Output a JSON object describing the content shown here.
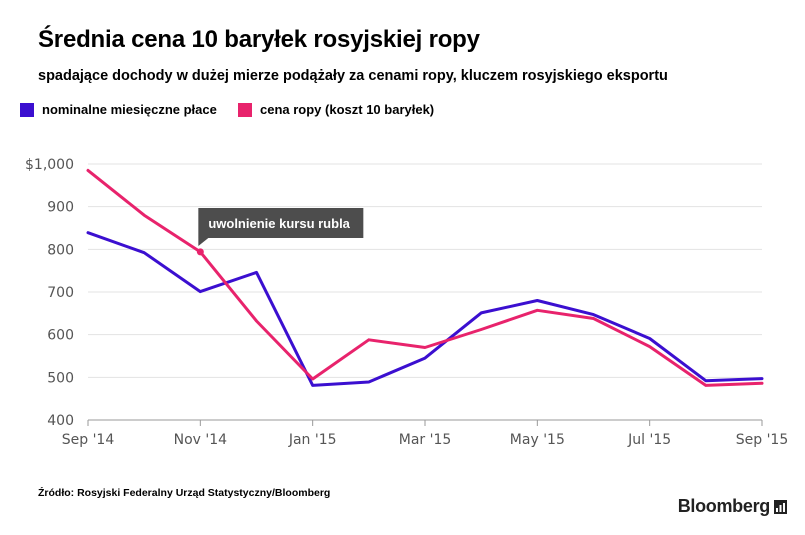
{
  "header": {
    "title": "Średnia cena 10 baryłek rosyjskiej ropy",
    "subtitle": "spadające dochody w dużej mierze podążały za cenami ropy, kluczem rosyjskiego eksportu"
  },
  "footer": {
    "source": "Źródło: Rosyjski Federalny Urząd Statystyczny/Bloomberg",
    "logo": "Bloomberg"
  },
  "chart_data": {
    "type": "line",
    "x": [
      "Sep '14",
      "Oct '14",
      "Nov '14",
      "Dec '14",
      "Jan '15",
      "Feb '15",
      "Mar '15",
      "Apr '15",
      "May '15",
      "Jun '15",
      "Jul '15",
      "Aug '15",
      "Sep '15"
    ],
    "x_tick_labels": [
      "Sep '14",
      "Nov '14",
      "Jan '15",
      "Mar '15",
      "May '15",
      "Jul '15",
      "Sep '15"
    ],
    "y_tick_labels": [
      "$1,000",
      "900",
      "800",
      "700",
      "600",
      "500",
      "400"
    ],
    "ylim": [
      400,
      1000
    ],
    "grid": true,
    "legend_position": "top-left",
    "series": [
      {
        "name": "nominalne miesięczne płace",
        "color": "#3b0fd0",
        "values": [
          839,
          792,
          701,
          746,
          481,
          489,
          545,
          651,
          680,
          647,
          591,
          492,
          497
        ]
      },
      {
        "name": "cena ropy (koszt 10 baryłek)",
        "color": "#e8236c",
        "values": [
          985,
          880,
          794,
          632,
          496,
          588,
          570,
          612,
          657,
          638,
          572,
          481,
          486
        ]
      }
    ],
    "annotations": [
      {
        "text": "uwolnienie kursu rubla",
        "x": "Nov '14",
        "y": 794,
        "series": 1
      }
    ]
  }
}
